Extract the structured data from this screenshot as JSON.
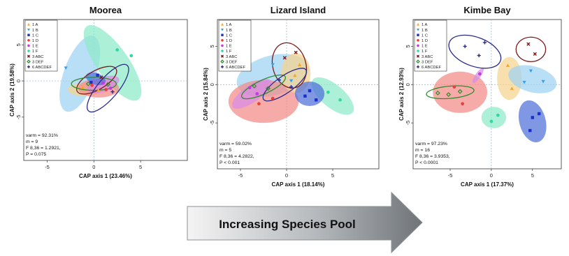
{
  "chart_data": [
    {
      "type": "scatter",
      "title": "Moorea",
      "xlabel": "CAP axis 1 (23.46%)",
      "ylabel": "CAP axis 2 (19.58%)",
      "xlim": [
        -7.5,
        10
      ],
      "ylim": [
        -11,
        8.5
      ],
      "xticks": [
        -5,
        0,
        5
      ],
      "yticks": [
        -5,
        0,
        5
      ],
      "stats": [
        "varm = 92.31%",
        "m = 9",
        "F 8,36 = 1.2921,",
        "P = 0.075"
      ],
      "ellipses": [
        {
          "series": "1 B",
          "cx": -1.5,
          "cy": 1.0,
          "rx": 4.3,
          "ry": 2.2,
          "angle": -70
        },
        {
          "series": "1 F",
          "cx": 2.0,
          "cy": 2.5,
          "rx": 4.8,
          "ry": 2.2,
          "angle": 55
        },
        {
          "series": "1 A",
          "cx": -1.0,
          "cy": -1.2,
          "rx": 1.8,
          "ry": 0.9,
          "angle": 0
        },
        {
          "series": "1 D",
          "cx": 0.5,
          "cy": -1.0,
          "rx": 2.2,
          "ry": 1.3,
          "angle": 0
        },
        {
          "series": "1 E",
          "cx": 1.0,
          "cy": -0.5,
          "rx": 1.8,
          "ry": 1.0,
          "angle": -20
        },
        {
          "series": "1 C",
          "cx": 0.2,
          "cy": 0.3,
          "rx": 1.1,
          "ry": 0.8,
          "angle": 20
        },
        {
          "series": "3 ABC",
          "cx": 0.3,
          "cy": 0.1,
          "rx": 2.4,
          "ry": 1.3,
          "angle": -30
        },
        {
          "series": "3 DEF",
          "cx": 0.0,
          "cy": -0.4,
          "rx": 2.4,
          "ry": 0.9,
          "angle": 0
        },
        {
          "series": "6 ABCDEF",
          "cx": 1.5,
          "cy": -1.0,
          "rx": 3.2,
          "ry": 1.4,
          "angle": -50
        }
      ],
      "points": [
        {
          "series": "1 A",
          "x": -1.2,
          "y": -0.9
        },
        {
          "series": "1 A",
          "x": 0.5,
          "y": -1.3
        },
        {
          "series": "1 B",
          "x": -3.0,
          "y": 1.8
        },
        {
          "series": "1 B",
          "x": -0.5,
          "y": 0.2
        },
        {
          "series": "1 C",
          "x": 0.4,
          "y": 0.8
        },
        {
          "series": "1 C",
          "x": -0.3,
          "y": -0.2
        },
        {
          "series": "1 D",
          "x": 1.3,
          "y": -1.2
        },
        {
          "series": "1 D",
          "x": -0.2,
          "y": -0.6
        },
        {
          "series": "1 E",
          "x": 1.0,
          "y": -0.3
        },
        {
          "series": "1 E",
          "x": 1.8,
          "y": -1.0
        },
        {
          "series": "1 F",
          "x": 4.0,
          "y": 3.5
        },
        {
          "series": "1 F",
          "x": 2.5,
          "y": 4.3
        },
        {
          "series": "3 ABC",
          "x": 0.8,
          "y": 0.5
        },
        {
          "series": "3 DEF",
          "x": -0.6,
          "y": -0.4
        },
        {
          "series": "3 DEF",
          "x": 1.5,
          "y": -0.5
        },
        {
          "series": "6 ABCDEF",
          "x": 2.0,
          "y": -1.5
        }
      ]
    },
    {
      "type": "scatter",
      "title": "Lizard Island",
      "xlabel": "CAP axis 1 (18.14%)",
      "ylabel": "CAP axis 2 (15.84%)",
      "xlim": [
        -7.5,
        10
      ],
      "ylim": [
        -11,
        8.5
      ],
      "xticks": [
        -5,
        0,
        5
      ],
      "yticks": [
        -5,
        0,
        5
      ],
      "stats": [
        "varm = 59.02%",
        "m = 5",
        "F 8,36 = 4.2822,",
        "P < 0.001"
      ],
      "ellipses": [
        {
          "series": "1 B",
          "cx": -1.5,
          "cy": 1.2,
          "rx": 4.0,
          "ry": 2.6,
          "angle": -15
        },
        {
          "series": "1 D",
          "cx": -2.5,
          "cy": -2.2,
          "rx": 3.8,
          "ry": 2.8,
          "angle": 0
        },
        {
          "series": "1 A",
          "cx": 1.0,
          "cy": 1.5,
          "rx": 1.6,
          "ry": 2.6,
          "angle": 0
        },
        {
          "series": "1 F",
          "cx": 5.0,
          "cy": -1.5,
          "rx": 2.8,
          "ry": 1.5,
          "angle": 40
        },
        {
          "series": "1 C",
          "cx": 2.5,
          "cy": -1.2,
          "rx": 1.6,
          "ry": 1.6,
          "angle": 0
        },
        {
          "series": "1 E",
          "cx": -3.8,
          "cy": -1.2,
          "rx": 2.5,
          "ry": 1.1,
          "angle": -35
        },
        {
          "series": "3 ABC",
          "cx": 0.3,
          "cy": 2.5,
          "rx": 1.8,
          "ry": 3.0,
          "angle": -15
        },
        {
          "series": "3 DEF",
          "cx": -2.5,
          "cy": -0.3,
          "rx": 2.6,
          "ry": 0.9,
          "angle": -25
        },
        {
          "series": "6 ABCDEF",
          "cx": -0.2,
          "cy": 0.0,
          "rx": 2.8,
          "ry": 1.1,
          "angle": -35
        }
      ],
      "points": [
        {
          "series": "1 A",
          "x": 1.4,
          "y": 2.6
        },
        {
          "series": "1 A",
          "x": 0.9,
          "y": 1.2
        },
        {
          "series": "1 B",
          "x": -1.5,
          "y": 2.6
        },
        {
          "series": "1 B",
          "x": 0.5,
          "y": 0.5
        },
        {
          "series": "1 C",
          "x": 2.5,
          "y": -0.8
        },
        {
          "series": "1 C",
          "x": 3.2,
          "y": -2.0
        },
        {
          "series": "1 C",
          "x": 2.0,
          "y": -1.5
        },
        {
          "series": "1 D",
          "x": -3.0,
          "y": -2.5
        },
        {
          "series": "1 D",
          "x": -1.5,
          "y": -1.8
        },
        {
          "series": "1 E",
          "x": -4.0,
          "y": -0.4
        },
        {
          "series": "1 E",
          "x": -3.2,
          "y": -1.2
        },
        {
          "series": "1 F",
          "x": 4.5,
          "y": -1.0
        },
        {
          "series": "1 F",
          "x": 5.8,
          "y": -2.0
        },
        {
          "series": "3 ABC",
          "x": -0.2,
          "y": 3.5
        },
        {
          "series": "3 ABC",
          "x": 1.0,
          "y": 4.2
        },
        {
          "series": "3 DEF",
          "x": -3.5,
          "y": -0.2
        },
        {
          "series": "3 DEF",
          "x": -2.0,
          "y": -0.5
        },
        {
          "series": "6 ABCDEF",
          "x": 0.5,
          "y": -0.3
        },
        {
          "series": "6 ABCDEF",
          "x": -0.8,
          "y": 0.6
        }
      ]
    },
    {
      "type": "scatter",
      "title": "Kimbe Bay",
      "xlabel": "CAP axis 1 (17.37%)",
      "ylabel": "CAP axis 2 (12.93%)",
      "xlim": [
        -9.5,
        8.5
      ],
      "ylim": [
        -11,
        8.5
      ],
      "xticks": [
        -5,
        0,
        5
      ],
      "yticks": [
        -5,
        0,
        5
      ],
      "stats": [
        "varm = 97.23%",
        "m = 16",
        "F 8,36 = 3.9353,",
        "P < 0.0001"
      ],
      "ellipses": [
        {
          "series": "1 D",
          "cx": -3.8,
          "cy": -1.0,
          "rx": 3.3,
          "ry": 2.7,
          "angle": 0
        },
        {
          "series": "1 A",
          "cx": 2.2,
          "cy": 0.8,
          "rx": 1.5,
          "ry": 2.8,
          "angle": 0
        },
        {
          "series": "1 B",
          "cx": 5.0,
          "cy": 0.7,
          "rx": 3.0,
          "ry": 1.7,
          "angle": 15
        },
        {
          "series": "1 C",
          "cx": 5.0,
          "cy": -4.8,
          "rx": 1.6,
          "ry": 2.8,
          "angle": -15
        },
        {
          "series": "1 F",
          "cx": 0.3,
          "cy": -4.3,
          "rx": 1.5,
          "ry": 1.4,
          "angle": 0
        },
        {
          "series": "1 E",
          "cx": -1.6,
          "cy": 1.2,
          "rx": 1.1,
          "ry": 0.35,
          "angle": -55
        },
        {
          "series": "3 ABC",
          "cx": 4.8,
          "cy": 4.6,
          "rx": 1.8,
          "ry": 1.6,
          "angle": 0
        },
        {
          "series": "3 DEF",
          "cx": -5.0,
          "cy": -1.0,
          "rx": 2.9,
          "ry": 0.8,
          "angle": -5
        },
        {
          "series": "6 ABCDEF",
          "cx": -2.0,
          "cy": 4.3,
          "rx": 3.3,
          "ry": 1.9,
          "angle": 20
        }
      ],
      "points": [
        {
          "series": "1 A",
          "x": 2.0,
          "y": 2.5
        },
        {
          "series": "1 A",
          "x": 2.5,
          "y": -0.5
        },
        {
          "series": "1 B",
          "x": 4.8,
          "y": 1.8
        },
        {
          "series": "1 B",
          "x": 6.3,
          "y": 0.4
        },
        {
          "series": "1 B",
          "x": 4.0,
          "y": 0.3
        },
        {
          "series": "1 C",
          "x": 5.0,
          "y": -4.3
        },
        {
          "series": "1 C",
          "x": 4.7,
          "y": -6.0
        },
        {
          "series": "1 C",
          "x": 5.8,
          "y": -3.8
        },
        {
          "series": "1 D",
          "x": -3.5,
          "y": -2.5
        },
        {
          "series": "1 D",
          "x": -4.5,
          "y": -0.3
        },
        {
          "series": "1 E",
          "x": -1.4,
          "y": 1.4
        },
        {
          "series": "1 F",
          "x": 0.0,
          "y": -4.8
        },
        {
          "series": "1 F",
          "x": 0.8,
          "y": -4.0
        },
        {
          "series": "3 ABC",
          "x": 4.5,
          "y": 5.3
        },
        {
          "series": "3 ABC",
          "x": 5.3,
          "y": 4.0
        },
        {
          "series": "3 DEF",
          "x": -6.5,
          "y": -1.1
        },
        {
          "series": "3 DEF",
          "x": -5.2,
          "y": -1.3
        },
        {
          "series": "3 DEF",
          "x": -3.8,
          "y": -0.9
        },
        {
          "series": "6 ABCDEF",
          "x": -3.2,
          "y": 5.0
        },
        {
          "series": "6 ABCDEF",
          "x": -1.5,
          "y": 3.8
        },
        {
          "series": "6 ABCDEF",
          "x": -0.8,
          "y": 5.5
        }
      ]
    }
  ],
  "legend": [
    {
      "name": "1 A",
      "marker": "triangle-up",
      "color": "#F5A623",
      "fill": "#F5D28F"
    },
    {
      "name": "1 B",
      "marker": "triangle-down",
      "color": "#3AA0E8",
      "fill": "#9ED2F2"
    },
    {
      "name": "1 C",
      "marker": "square",
      "color": "#1A2FC8",
      "fill": "#4F6FD8"
    },
    {
      "name": "1 D",
      "marker": "circle",
      "color": "#E4403C",
      "fill": "#F28B86"
    },
    {
      "name": "1 E",
      "marker": "circle",
      "color": "#C13CD8",
      "fill": "#D88BE8"
    },
    {
      "name": "1 F",
      "marker": "circle",
      "color": "#2FD8A4",
      "fill": "#8EEAC9"
    },
    {
      "name": "3 ABC",
      "marker": "cross",
      "color": "#7A1A1A",
      "fill": "none"
    },
    {
      "name": "3 DEF",
      "marker": "diamond",
      "color": "#2E8B2E",
      "fill": "none"
    },
    {
      "name": "6 ABCDEF",
      "marker": "plus",
      "color": "#2A2A8A",
      "fill": "none"
    }
  ],
  "arrow": {
    "label": "Increasing Species Pool"
  }
}
